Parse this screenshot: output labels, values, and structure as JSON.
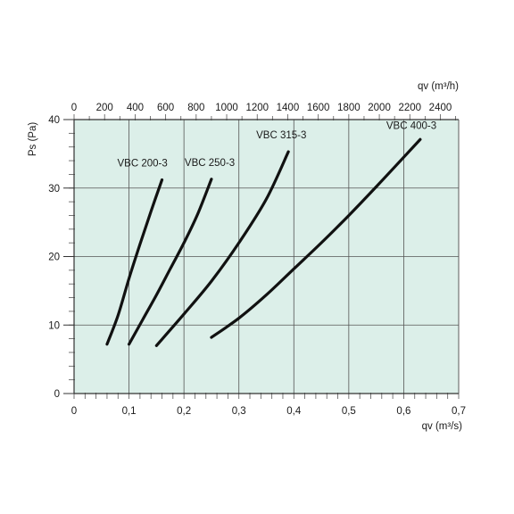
{
  "chart_data": {
    "type": "line",
    "x_unit_primary": "m³/s",
    "x_unit_secondary": "m³/h",
    "xlabel_bottom": "qv (m³/s)",
    "xlabel_top": "qv (m³/h)",
    "ylabel": "Ps (Pa)",
    "xlim": [
      0,
      0.7
    ],
    "xlim_top": [
      0,
      2520
    ],
    "ylim": [
      0,
      40
    ],
    "x_ticks": [
      0,
      0.1,
      0.2,
      0.3,
      0.4,
      0.5,
      0.6,
      0.7
    ],
    "x_tick_labels": [
      "0",
      "0,1",
      "0,2",
      "0,3",
      "0,4",
      "0,5",
      "0,6",
      "0,7"
    ],
    "x_top_ticks": [
      0,
      200,
      400,
      600,
      800,
      1000,
      1200,
      1400,
      1600,
      1800,
      2000,
      2200,
      2400
    ],
    "x_top_tick_labels": [
      "0",
      "200",
      "400",
      "600",
      "800",
      "1000",
      "1200",
      "1400",
      "1600",
      "1800",
      "2000",
      "2200",
      "2400"
    ],
    "y_ticks": [
      0,
      10,
      20,
      30,
      40
    ],
    "y_tick_labels": [
      "0",
      "10",
      "20",
      "30",
      "40"
    ],
    "grid": true,
    "background_color": "#dcefe9",
    "line_color": "#111111",
    "series": [
      {
        "name": "VBC 200-3",
        "x": [
          0.06,
          0.08,
          0.1,
          0.12,
          0.14,
          0.16
        ],
        "y": [
          7.2,
          11.4,
          16.8,
          21.8,
          26.6,
          31.2
        ]
      },
      {
        "name": "VBC 250-3",
        "x": [
          0.1,
          0.125,
          0.15,
          0.175,
          0.2,
          0.225,
          0.25
        ],
        "y": [
          7.2,
          10.8,
          14.4,
          18.2,
          22.0,
          26.2,
          31.3
        ]
      },
      {
        "name": "VBC 315-3",
        "x": [
          0.15,
          0.2,
          0.25,
          0.3,
          0.35,
          0.39
        ],
        "y": [
          7.0,
          11.6,
          16.4,
          22.0,
          28.4,
          35.3
        ]
      },
      {
        "name": "VBC 400-3",
        "x": [
          0.25,
          0.3,
          0.35,
          0.4,
          0.45,
          0.5,
          0.55,
          0.6,
          0.63
        ],
        "y": [
          8.2,
          11.0,
          14.4,
          18.2,
          22.0,
          26.0,
          30.2,
          34.5,
          37.1
        ]
      }
    ]
  }
}
